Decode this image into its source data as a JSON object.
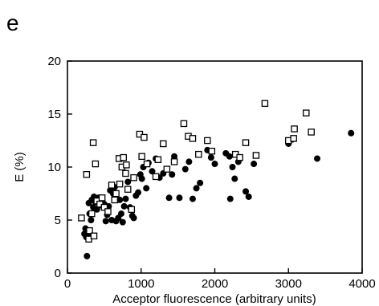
{
  "panel_label": "e",
  "chart_data": {
    "type": "scatter",
    "title": "",
    "xlabel": "Acceptor fluorescence (arbitrary units)",
    "ylabel": "E (%)",
    "xlim": [
      0,
      4000
    ],
    "ylim": [
      0,
      20
    ],
    "xticks": [
      0,
      1000,
      2000,
      3000,
      4000
    ],
    "yticks": [
      0,
      5,
      10,
      15,
      20
    ],
    "grid": false,
    "legend": "none",
    "series": [
      {
        "marker": "filled-circle",
        "color": "#000000",
        "points": [
          [
            230,
            3.7
          ],
          [
            245,
            4.2
          ],
          [
            255,
            3.4
          ],
          [
            260,
            3.9
          ],
          [
            270,
            3.6
          ],
          [
            280,
            4.0
          ],
          [
            290,
            3.3
          ],
          [
            300,
            3.8
          ],
          [
            265,
            1.6
          ],
          [
            290,
            6.6
          ],
          [
            300,
            5.6
          ],
          [
            320,
            5.0
          ],
          [
            330,
            6.9
          ],
          [
            350,
            6.2
          ],
          [
            360,
            7.2
          ],
          [
            380,
            6.7
          ],
          [
            400,
            6.0
          ],
          [
            420,
            7.1
          ],
          [
            440,
            6.4
          ],
          [
            470,
            6.8
          ],
          [
            500,
            6.5
          ],
          [
            520,
            4.9
          ],
          [
            540,
            5.5
          ],
          [
            560,
            6.3
          ],
          [
            580,
            7.8
          ],
          [
            600,
            5.0
          ],
          [
            620,
            7.5
          ],
          [
            640,
            8.1
          ],
          [
            660,
            4.9
          ],
          [
            690,
            5.2
          ],
          [
            710,
            6.9
          ],
          [
            730,
            5.6
          ],
          [
            750,
            4.8
          ],
          [
            770,
            6.3
          ],
          [
            790,
            7.0
          ],
          [
            820,
            8.6
          ],
          [
            850,
            6.2
          ],
          [
            880,
            5.4
          ],
          [
            900,
            5.2
          ],
          [
            930,
            7.3
          ],
          [
            960,
            7.6
          ],
          [
            990,
            9.3
          ],
          [
            1010,
            8.9
          ],
          [
            1030,
            10.0
          ],
          [
            1070,
            8.0
          ],
          [
            1100,
            10.4
          ],
          [
            1150,
            9.6
          ],
          [
            1200,
            10.8
          ],
          [
            1250,
            9.0
          ],
          [
            1300,
            9.4
          ],
          [
            1380,
            7.1
          ],
          [
            1420,
            9.3
          ],
          [
            1450,
            11.0
          ],
          [
            1520,
            7.1
          ],
          [
            1600,
            9.8
          ],
          [
            1650,
            10.5
          ],
          [
            1700,
            7.0
          ],
          [
            1750,
            8.0
          ],
          [
            1800,
            8.5
          ],
          [
            1900,
            11.6
          ],
          [
            1950,
            10.9
          ],
          [
            2000,
            10.3
          ],
          [
            2150,
            11.3
          ],
          [
            2200,
            11.0
          ],
          [
            2210,
            7.0
          ],
          [
            2240,
            10.0
          ],
          [
            2270,
            8.9
          ],
          [
            2320,
            10.5
          ],
          [
            2420,
            7.7
          ],
          [
            2460,
            7.2
          ],
          [
            2530,
            10.3
          ],
          [
            3000,
            12.2
          ],
          [
            3050,
            12.6
          ],
          [
            3390,
            10.8
          ],
          [
            3850,
            13.2
          ]
        ]
      },
      {
        "marker": "open-square",
        "color": "#000000",
        "points": [
          [
            190,
            5.2
          ],
          [
            260,
            9.3
          ],
          [
            290,
            3.2
          ],
          [
            300,
            4.0
          ],
          [
            330,
            5.6
          ],
          [
            350,
            12.3
          ],
          [
            360,
            3.5
          ],
          [
            380,
            10.3
          ],
          [
            400,
            6.8
          ],
          [
            440,
            6.5
          ],
          [
            470,
            7.1
          ],
          [
            500,
            6.2
          ],
          [
            550,
            5.8
          ],
          [
            600,
            8.3
          ],
          [
            640,
            6.9
          ],
          [
            660,
            7.5
          ],
          [
            700,
            10.8
          ],
          [
            710,
            8.4
          ],
          [
            740,
            10.0
          ],
          [
            760,
            10.9
          ],
          [
            790,
            9.4
          ],
          [
            800,
            10.2
          ],
          [
            820,
            7.9
          ],
          [
            870,
            6.0
          ],
          [
            900,
            9.0
          ],
          [
            980,
            13.1
          ],
          [
            1010,
            11.0
          ],
          [
            1040,
            12.8
          ],
          [
            1080,
            10.3
          ],
          [
            1200,
            9.1
          ],
          [
            1230,
            10.7
          ],
          [
            1300,
            12.2
          ],
          [
            1350,
            9.8
          ],
          [
            1450,
            10.5
          ],
          [
            1580,
            14.1
          ],
          [
            1640,
            12.9
          ],
          [
            1700,
            12.7
          ],
          [
            1780,
            11.2
          ],
          [
            1900,
            12.5
          ],
          [
            1960,
            11.5
          ],
          [
            2280,
            11.2
          ],
          [
            2340,
            10.9
          ],
          [
            2420,
            12.3
          ],
          [
            2560,
            11.1
          ],
          [
            2680,
            16.0
          ],
          [
            3000,
            12.5
          ],
          [
            3070,
            12.7
          ],
          [
            3080,
            13.6
          ],
          [
            3240,
            15.1
          ],
          [
            3310,
            13.3
          ]
        ]
      }
    ]
  }
}
